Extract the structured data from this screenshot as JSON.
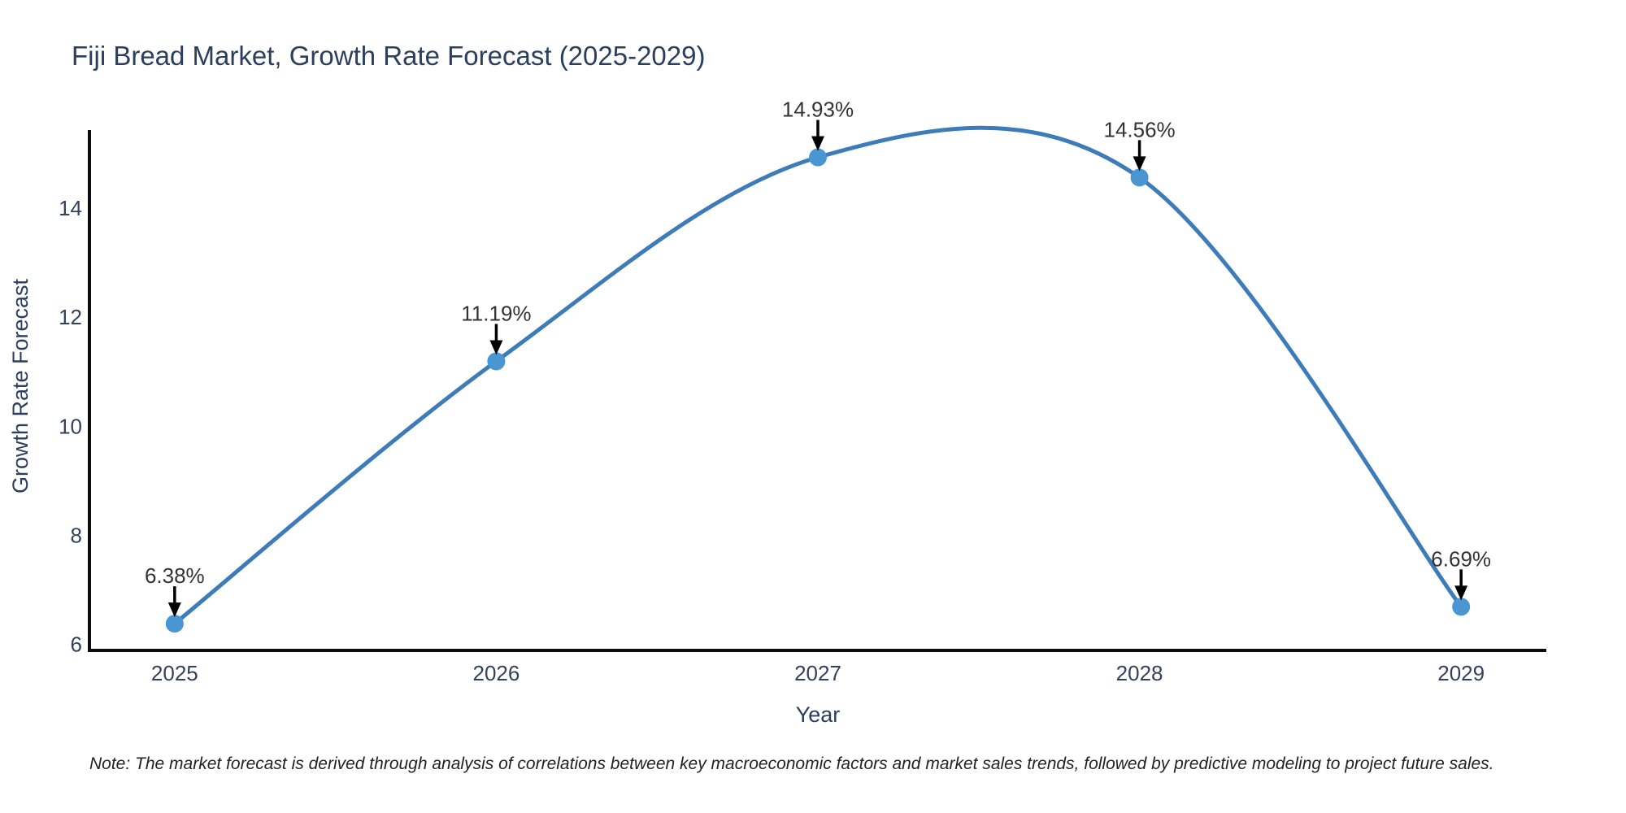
{
  "chart_data": {
    "type": "line",
    "title": "Fiji Bread Market, Growth Rate Forecast (2025-2029)",
    "xlabel": "Year",
    "ylabel": "Growth Rate Forecast",
    "x": [
      2025,
      2026,
      2027,
      2028,
      2029
    ],
    "series": [
      {
        "name": "Growth Rate Forecast",
        "values": [
          6.38,
          11.19,
          14.93,
          14.56,
          6.69
        ],
        "point_labels": [
          "6.38%",
          "11.19%",
          "14.93%",
          "14.56%",
          "6.69%"
        ]
      }
    ],
    "line_shape": "spline",
    "markers": true,
    "annotations_arrows": true,
    "xticks": [
      2025,
      2026,
      2027,
      2028,
      2029
    ],
    "xtick_labels": [
      "2025",
      "2026",
      "2027",
      "2028",
      "2029"
    ],
    "yticks": [
      6,
      8,
      10,
      12,
      14
    ],
    "ytick_labels": [
      "6",
      "8",
      "10",
      "12",
      "14"
    ],
    "xlim": [
      2024.735,
      2029.265
    ],
    "ylim": [
      5.89,
      15.43
    ],
    "grid": false,
    "legend": false,
    "colors": {
      "line": "#3d7cb8",
      "marker": "#4a96d2",
      "arrow": "#000000",
      "annotation_text": "#333333",
      "axis_spine": "#0d0d0d",
      "label_text": "#2b3e5c"
    }
  },
  "note": "Note: The market forecast is derived through analysis of correlations between key macroeconomic factors and market sales trends, followed by predictive modeling to project future sales."
}
